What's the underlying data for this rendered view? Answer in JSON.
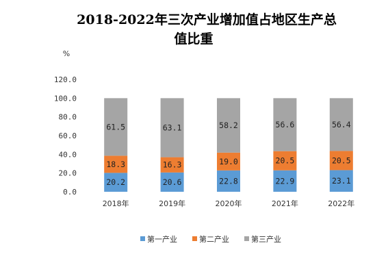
{
  "chart_data": {
    "type": "bar",
    "stacked": true,
    "title_line1": "2018-2022年三次产业增加值占地区生产总",
    "title_line2": "值比重",
    "y_unit": "%",
    "ylim": [
      0,
      120
    ],
    "yticks": [
      "0.0",
      "20.0",
      "40.0",
      "60.0",
      "80.0",
      "100.0",
      "120.0"
    ],
    "categories": [
      "2018年",
      "2019年",
      "2020年",
      "2021年",
      "2022年"
    ],
    "series": [
      {
        "name": "第一产业",
        "color": "#5B9BD5",
        "values": [
          20.2,
          20.6,
          22.8,
          22.9,
          23.1
        ],
        "labels": [
          "20.2",
          "20.6",
          "22.8",
          "22.9",
          "23.1"
        ]
      },
      {
        "name": "第二产业",
        "color": "#ED7D31",
        "values": [
          18.3,
          16.3,
          19.0,
          20.5,
          20.5
        ],
        "labels": [
          "18.3",
          "16.3",
          "19.0",
          "20.5",
          "20.5"
        ]
      },
      {
        "name": "第三产业",
        "color": "#A5A5A5",
        "values": [
          61.5,
          63.1,
          58.2,
          56.6,
          56.4
        ],
        "labels": [
          "61.5",
          "63.1",
          "58.2",
          "56.6",
          "56.4"
        ]
      }
    ],
    "legend_position": "bottom",
    "grid": false
  }
}
